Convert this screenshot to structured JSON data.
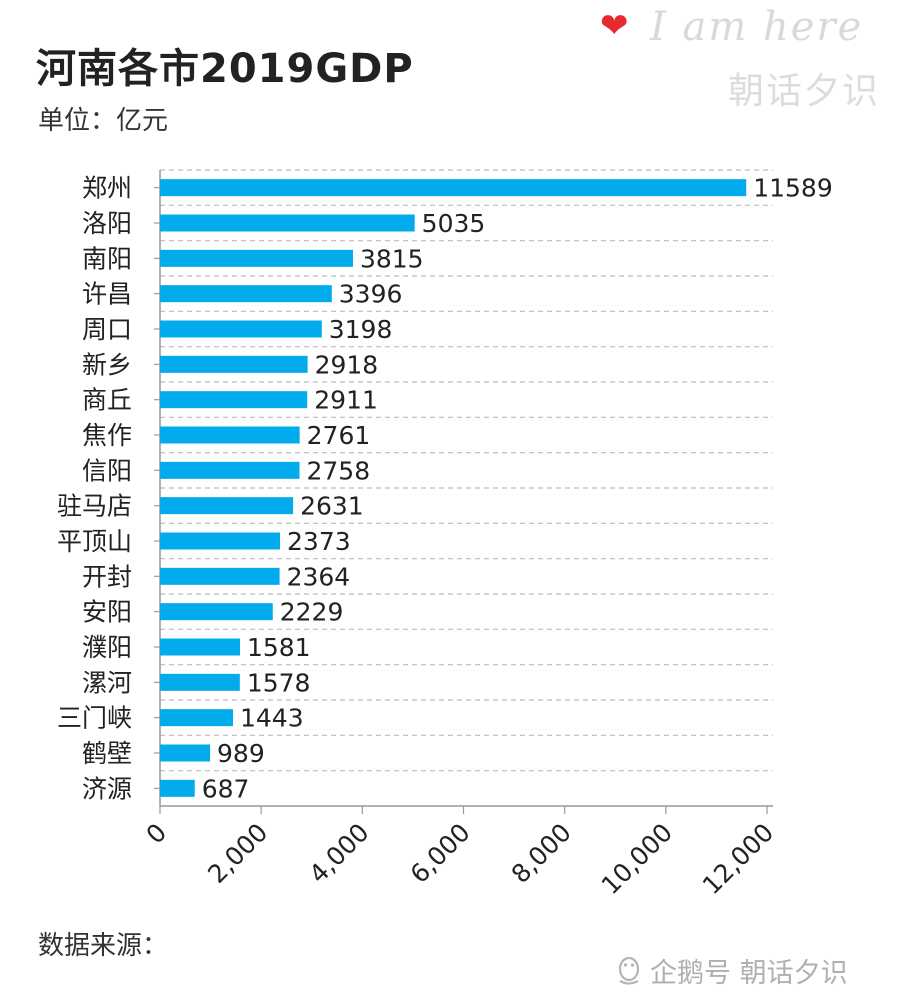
{
  "header": {
    "title": "河南各市2019GDP",
    "subtitle": "单位：亿元"
  },
  "watermark": {
    "heart_icon": "heart-icon",
    "english": "I am here",
    "chinese": "朝话夕识"
  },
  "source_label": "数据来源：",
  "footer": {
    "icon": "penguin-icon",
    "text": "企鹅号 朝话夕识"
  },
  "colors": {
    "bar": "#02abeb",
    "grid": "#bbbbbb",
    "axis": "#999999",
    "heart": "#e8292f"
  },
  "chart_data": {
    "type": "bar",
    "orientation": "horizontal",
    "title": "河南各市2019GDP",
    "subtitle": "单位：亿元",
    "categories": [
      "郑州",
      "洛阳",
      "南阳",
      "许昌",
      "周口",
      "新乡",
      "商丘",
      "焦作",
      "信阳",
      "驻马店",
      "平顶山",
      "开封",
      "安阳",
      "濮阳",
      "漯河",
      "三门峡",
      "鹤壁",
      "济源"
    ],
    "values": [
      11589,
      5035,
      3815,
      3396,
      3198,
      2918,
      2911,
      2761,
      2758,
      2631,
      2373,
      2364,
      2229,
      1581,
      1578,
      1443,
      989,
      687
    ],
    "data_labels": [
      "11589",
      "5035",
      "3815",
      "3396",
      "3198",
      "2918",
      "2911",
      "2761",
      "2758",
      "2631",
      "2373",
      "2364",
      "2229",
      "1581",
      "1578",
      "1443",
      "989",
      "687"
    ],
    "xlim": [
      0,
      12000
    ],
    "x_ticks": [
      0,
      2000,
      4000,
      6000,
      8000,
      10000,
      12000
    ],
    "x_tick_labels": [
      "0",
      "2,000",
      "4,000",
      "6,000",
      "8,000",
      "10,000",
      "12,000"
    ],
    "grid": true,
    "legend": "none"
  }
}
